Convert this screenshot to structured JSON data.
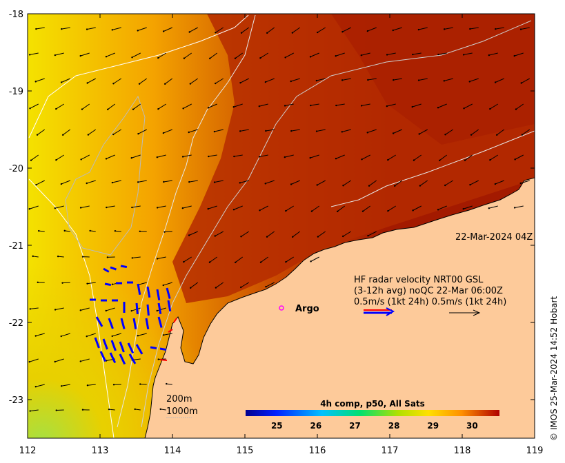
{
  "map": {
    "lon_range": [
      112,
      119
    ],
    "lat_range": [
      -23.5,
      -18
    ],
    "x_ticks": [
      "112",
      "113",
      "114",
      "115",
      "116",
      "117",
      "118",
      "119"
    ],
    "y_ticks": [
      "-18",
      "-19",
      "-20",
      "-21",
      "-22",
      "-23"
    ],
    "timestamp": "22-Mar-2024 04Z",
    "argo_label": "Argo",
    "legend": {
      "line1": "HF radar velocity  NRT00 GSL",
      "line2": "(3-12h avg) noQC 22-Mar 06:00Z",
      "line3": "0.5m/s (1kt 24h)   0.5m/s (1kt 24h)"
    },
    "isobaths": {
      "shallow": "200m",
      "deep": "1000m"
    },
    "colorbar": {
      "title": "4h comp, p50, All Sats",
      "ticks": [
        "25",
        "26",
        "27",
        "28",
        "29",
        "30"
      ],
      "range": [
        24.2,
        30.7
      ]
    },
    "credit": "© IMOS 25-Mar-2024 14:52 Hobart",
    "colors": {
      "land": "#fdca9a",
      "sst_cool": "#c8e63a",
      "sst_mid": "#f2a400",
      "sst_warm": "#c94a00",
      "sst_hot": "#a51c00",
      "radar_blue": "#0000ff",
      "radar_red": "#ff0000",
      "argo": "#ff00ff"
    }
  }
}
